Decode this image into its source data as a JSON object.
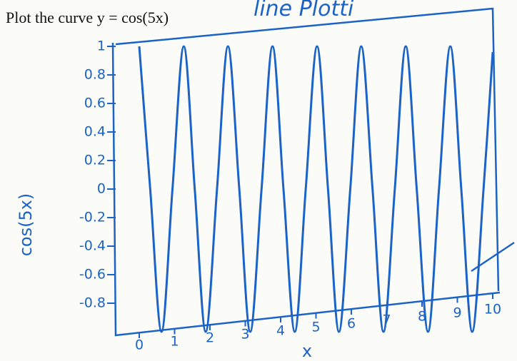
{
  "chart_data": {
    "type": "line",
    "title": "Plot the curve y = cos(5x)",
    "annotation": "line Plotti",
    "x_label": "x",
    "y_label": "cos(5x)",
    "series": [
      {
        "name": "cos(5x)",
        "color": "#1b63c6",
        "x": [
          0,
          0.31,
          0.63,
          0.94,
          1.26,
          1.57,
          1.88,
          2.2,
          2.51,
          2.83,
          3.14,
          3.46,
          3.77,
          4.08,
          4.4,
          4.71,
          5.03,
          5.34,
          5.65,
          5.97,
          6.28,
          6.6,
          6.91,
          7.23,
          7.54,
          7.85,
          8.17,
          8.48,
          8.8,
          9.11,
          9.42,
          9.74,
          10
        ],
        "values": [
          1,
          0,
          -1,
          0,
          1,
          0,
          -1,
          0,
          1,
          0,
          -1,
          0,
          1,
          0,
          -1,
          0,
          1,
          0,
          -1,
          0,
          1,
          0,
          -1,
          0,
          1,
          0,
          -1,
          0,
          1,
          0,
          -1,
          0,
          0.96
        ]
      }
    ],
    "xlim": [
      0,
      10
    ],
    "xticks": [
      0,
      1,
      2,
      3,
      4,
      5,
      6,
      7,
      8,
      9,
      10
    ],
    "ylim": [
      -1,
      1
    ],
    "yticks": [
      -0.8,
      -0.6,
      -0.4,
      -0.2,
      0,
      0.2,
      0.4,
      0.6,
      0.8,
      1
    ],
    "grid": false
  }
}
